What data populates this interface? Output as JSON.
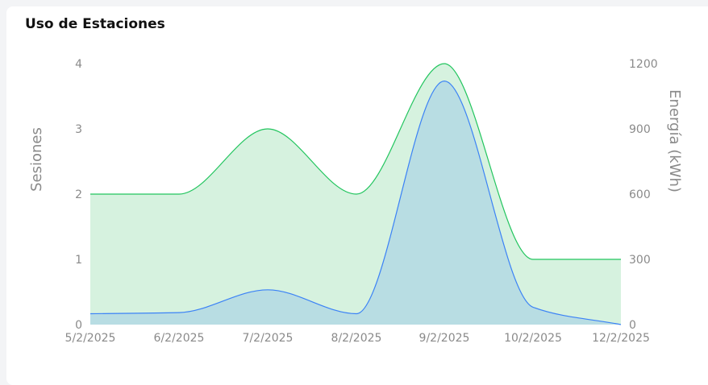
{
  "card": {
    "title": "Uso de Estaciones"
  },
  "chart_data": {
    "type": "area",
    "title": "Uso de Estaciones",
    "x": [
      "5/2/2025",
      "6/2/2025",
      "7/2/2025",
      "8/2/2025",
      "9/2/2025",
      "10/2/2025",
      "12/2/2025"
    ],
    "y_left": {
      "label": "Sesiones",
      "ylim": [
        0,
        4
      ],
      "ticks": [
        "0",
        "1",
        "2",
        "3",
        "4"
      ]
    },
    "y_right": {
      "label": "Energía (kWh)",
      "ylim": [
        0,
        1200
      ],
      "ticks": [
        "0",
        "300",
        "600",
        "900",
        "1200"
      ]
    },
    "series": [
      {
        "axis": "left",
        "color": "#22c55e",
        "fill": "#d6f2df",
        "values": [
          2,
          2,
          3,
          2,
          4,
          1,
          1
        ]
      },
      {
        "axis": "right",
        "color": "#3b82f6",
        "fill": "#b8dde3",
        "values": [
          50,
          55,
          160,
          50,
          1120,
          80,
          0
        ]
      }
    ],
    "grid": false,
    "legend": "none"
  }
}
